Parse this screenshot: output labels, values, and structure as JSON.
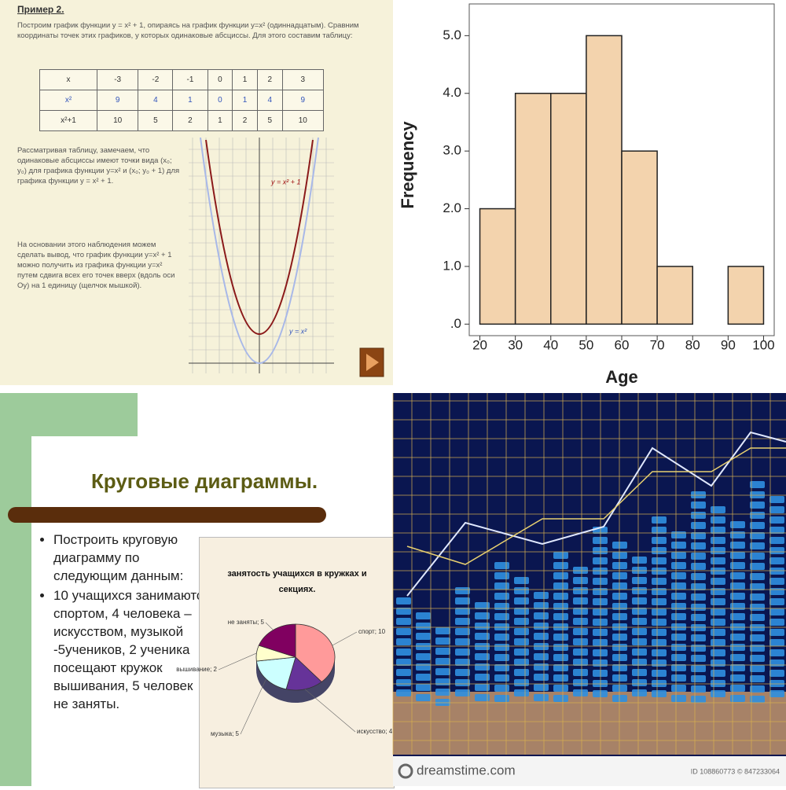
{
  "slide_function": {
    "title": "Пример 2.",
    "intro": "Построим график функции y = x² + 1, опираясь на график функции y=x² (одиннадцатым). Сравним координаты точек этих графиков, у которых одинаковые абсциссы. Для этого составим таблицу:",
    "table": {
      "rows": [
        [
          "x",
          "-3",
          "-2",
          "-1",
          "0",
          "1",
          "2",
          "3"
        ],
        [
          "x²",
          "9",
          "4",
          "1",
          "0",
          "1",
          "4",
          "9"
        ],
        [
          "x²+1",
          "10",
          "5",
          "2",
          "1",
          "2",
          "5",
          "10"
        ]
      ]
    },
    "note": "Рассматривая таблицу, замечаем, что одинаковые абсциссы имеют точки вида (x₀; y₀) для графика функции y=x² и (x₀; y₀ + 1) для графика функции y = x² + 1.",
    "conclusion": "На основании этого наблюдения можем сделать вывод, что график функции y=x² + 1 можно получить из графика функции y=x² путем сдвига всех его точек вверх (вдоль оси Oy) на 1 единицу (щелчок мышкой).",
    "curve_upper_label": "y = x² + 1",
    "curve_lower_label": "y = x²"
  },
  "chart_data": [
    {
      "type": "histogram",
      "xlabel": "Age",
      "ylabel": "Frequency",
      "bins": [
        20,
        30,
        40,
        50,
        60,
        70,
        80,
        90,
        100
      ],
      "values": [
        2,
        4,
        4,
        5,
        3,
        1,
        0,
        1
      ],
      "color": "#f3d3ad",
      "xlim": [
        17,
        103
      ],
      "xticks": [
        20,
        30,
        40,
        50,
        60,
        70,
        80,
        90,
        100
      ],
      "ylim": [
        -0.2,
        5.55
      ],
      "yticks": [
        {
          "value": 0,
          "label": ".0"
        },
        {
          "value": 1,
          "label": "1.0"
        },
        {
          "value": 2,
          "label": "2.0"
        },
        {
          "value": 3,
          "label": "3.0"
        },
        {
          "value": 4,
          "label": "4.0"
        },
        {
          "value": 5,
          "label": "5.0"
        }
      ],
      "grid": false
    },
    {
      "type": "pie",
      "title": "занятость учащихся в кружках и секциях.",
      "categories": [
        "спорт",
        "искусство",
        "музыка",
        "вышивание",
        "не заняты"
      ],
      "values": [
        10,
        4,
        5,
        2,
        5
      ],
      "labels": [
        "спорт; 10",
        "искусство; 4",
        "музыка; 5",
        "вышивание; 2",
        "не заняты; 5"
      ],
      "colors": [
        "#ff9a9a",
        "#663399",
        "#ccffff",
        "#ffffcc",
        "#800060"
      ]
    }
  ],
  "slide_pie": {
    "title": "Круговые диаграммы.",
    "bullets": [
      "Построить круговую диаграмму по следующим данным:",
      "10 учащихся занимаются спортом, 4 человека – искусством, музыкой -5учеников, 2 ученика посещают кружок вышивания, 5 человек не заняты."
    ]
  },
  "stock_image": {
    "watermark": "dreamstime.com",
    "id": "ID 108860773 © 847233064"
  }
}
